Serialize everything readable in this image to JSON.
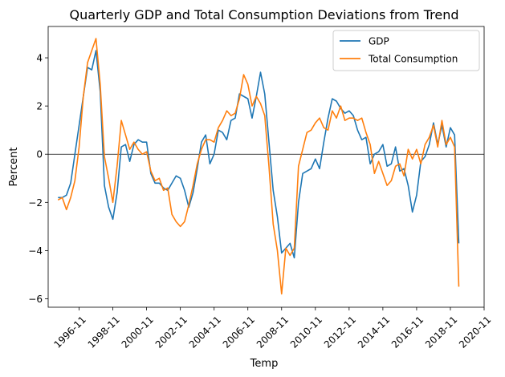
{
  "chart_data": {
    "type": "line",
    "title": "Quarterly GDP and Total Consumption Deviations from Trend",
    "xlabel": "Temp",
    "ylabel": "Percent",
    "x_start": "1995-08",
    "x_step_months": 3,
    "xlim": [
      "1995-01",
      "2020-11"
    ],
    "ylim": [
      -6.35,
      5.3
    ],
    "x_ticks": [
      "1996-11",
      "1998-11",
      "2000-11",
      "2002-11",
      "2004-11",
      "2006-11",
      "2008-11",
      "2010-11",
      "2012-11",
      "2014-11",
      "2016-11",
      "2018-11",
      "2020-11"
    ],
    "y_ticks": [
      -6,
      -4,
      -2,
      0,
      2,
      4
    ],
    "y_tick_labels": [
      "−6",
      "−4",
      "−2",
      "0",
      "2",
      "4"
    ],
    "zero_line": true,
    "grid": false,
    "legend_position": "top-right",
    "series": [
      {
        "name": "GDP",
        "color": "#1f77b4",
        "values": [
          -1.8,
          -1.8,
          -1.7,
          -1.2,
          0.0,
          1.2,
          2.4,
          3.6,
          3.5,
          4.3,
          2.6,
          -1.3,
          -2.2,
          -2.7,
          -1.6,
          0.3,
          0.4,
          -0.3,
          0.4,
          0.6,
          0.5,
          0.5,
          -0.8,
          -1.2,
          -1.2,
          -1.4,
          -1.5,
          -1.2,
          -0.9,
          -1.0,
          -1.5,
          -2.2,
          -1.6,
          -0.6,
          0.5,
          0.8,
          -0.4,
          0.0,
          1.0,
          0.9,
          0.6,
          1.4,
          1.5,
          2.5,
          2.4,
          2.3,
          1.5,
          2.4,
          3.4,
          2.5,
          0.5,
          -1.5,
          -2.6,
          -4.1,
          -3.9,
          -3.7,
          -4.3,
          -2.0,
          -0.8,
          -0.7,
          -0.6,
          -0.2,
          -0.6,
          0.5,
          1.5,
          2.3,
          2.2,
          1.9,
          1.7,
          1.8,
          1.6,
          1.0,
          0.6,
          0.7,
          -0.4,
          0.0,
          0.1,
          0.4,
          -0.5,
          -0.4,
          0.3,
          -0.7,
          -0.6,
          -1.3,
          -2.4,
          -1.7,
          -0.3,
          -0.1,
          0.4,
          1.3,
          0.4,
          1.2,
          0.3,
          1.1,
          0.8,
          -3.7
        ]
      },
      {
        "name": "Total Consumption",
        "color": "#ff7f0e",
        "values": [
          -1.9,
          -1.8,
          -2.3,
          -1.8,
          -1.1,
          0.3,
          2.4,
          3.8,
          4.3,
          4.8,
          2.9,
          -0.1,
          -1.0,
          -2.0,
          -0.5,
          1.4,
          0.8,
          0.2,
          0.5,
          0.2,
          0.0,
          0.1,
          -0.7,
          -1.1,
          -1.0,
          -1.5,
          -1.4,
          -2.5,
          -2.8,
          -3.0,
          -2.8,
          -2.1,
          -1.3,
          -0.4,
          0.2,
          0.6,
          0.6,
          0.5,
          1.1,
          1.4,
          1.8,
          1.6,
          1.7,
          2.3,
          3.3,
          2.9,
          2.0,
          2.4,
          2.1,
          1.6,
          -0.5,
          -2.9,
          -4.0,
          -5.8,
          -3.9,
          -4.2,
          -3.9,
          -0.5,
          0.2,
          0.9,
          1.0,
          1.3,
          1.5,
          1.1,
          1.0,
          1.8,
          1.5,
          2.0,
          1.4,
          1.5,
          1.5,
          1.4,
          1.5,
          0.9,
          0.4,
          -0.8,
          -0.3,
          -0.8,
          -1.3,
          -1.1,
          -0.5,
          -0.4,
          -0.9,
          0.2,
          -0.2,
          0.2,
          -0.4,
          0.4,
          0.7,
          1.2,
          0.3,
          1.4,
          0.4,
          0.7,
          0.3,
          -5.5
        ]
      }
    ]
  }
}
